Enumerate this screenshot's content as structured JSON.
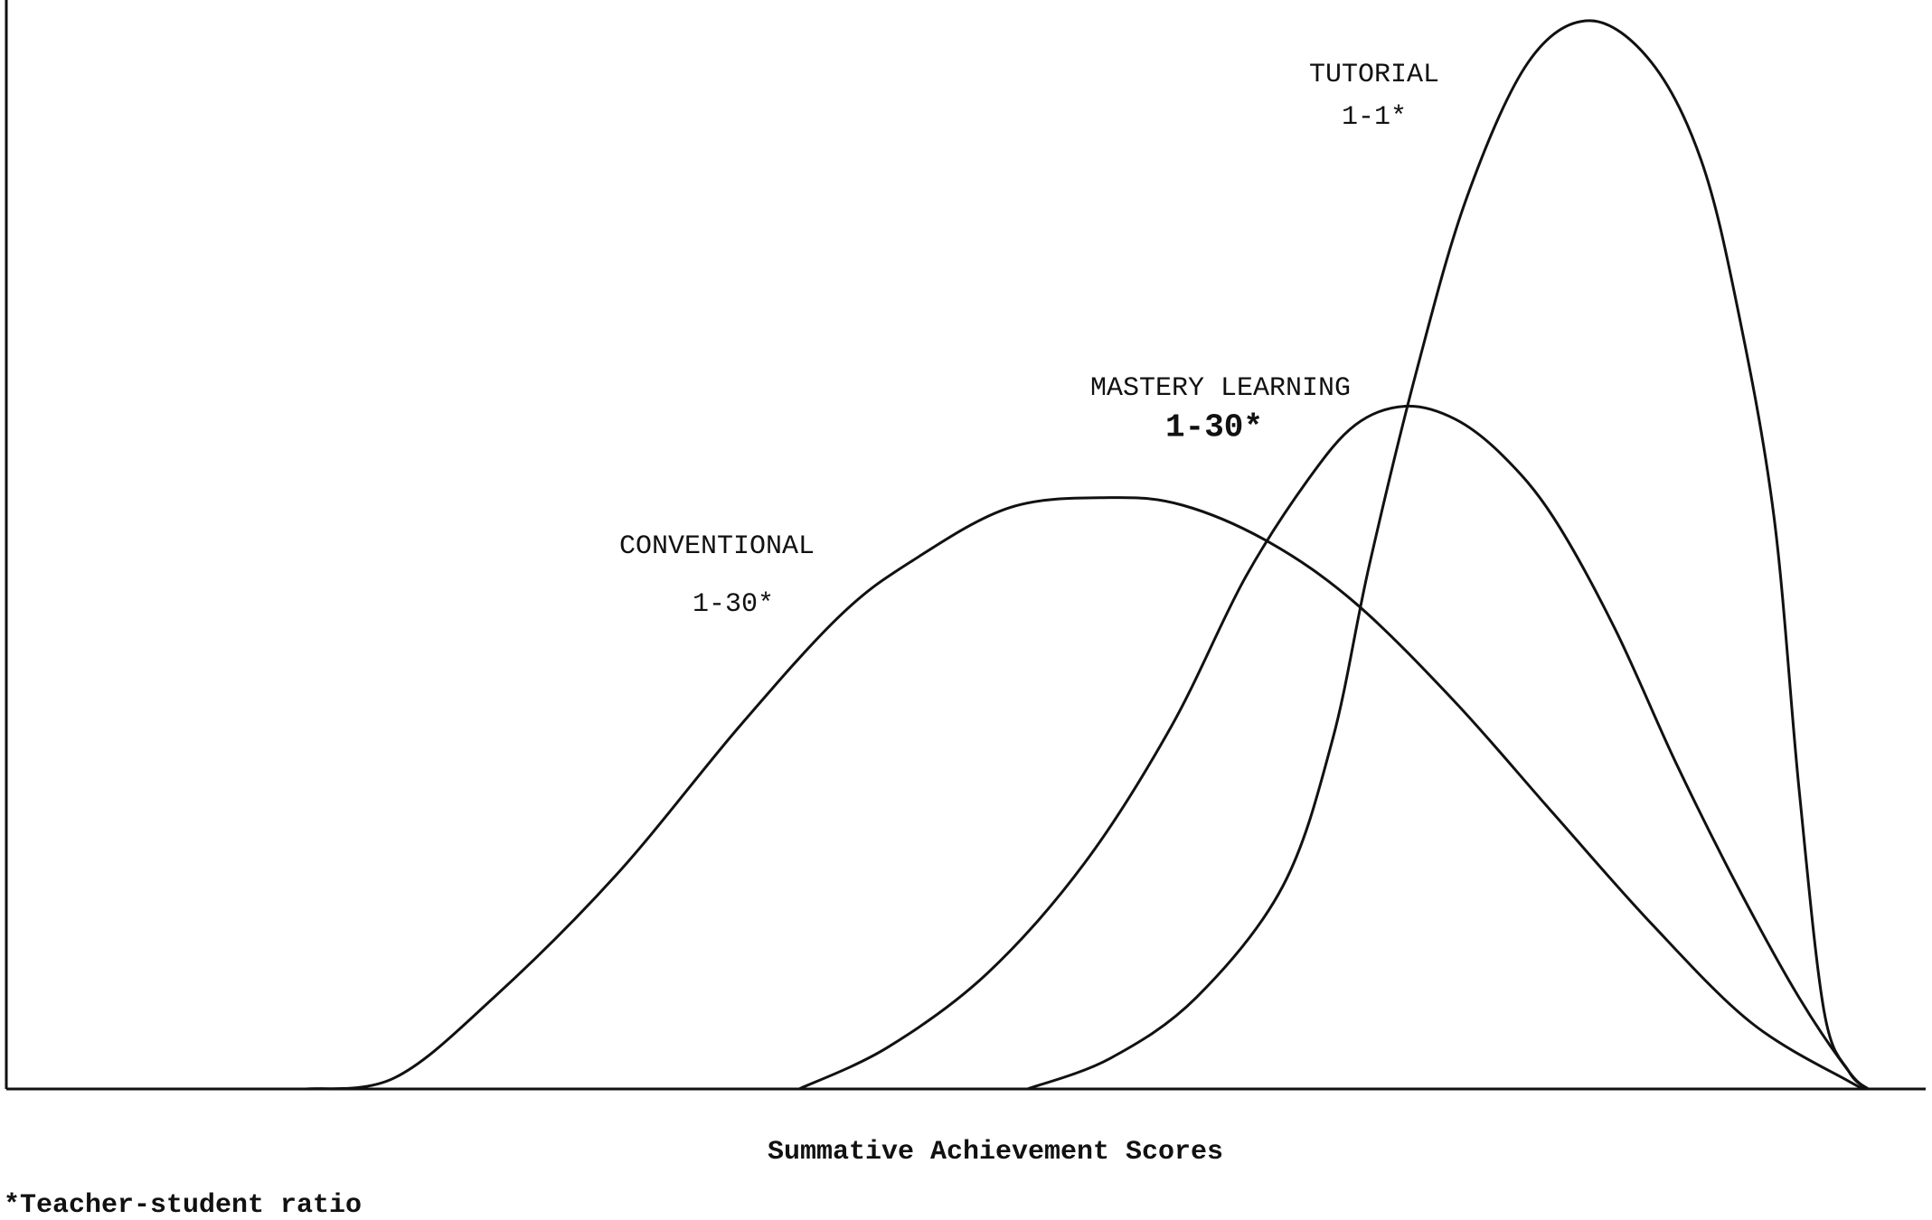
{
  "chart_data": {
    "type": "line",
    "xlabel": "Summative Achievement Scores",
    "footnote": "*Teacher-student ratio",
    "xlim": [
      0,
      100
    ],
    "ylim": [
      0,
      100
    ],
    "series": [
      {
        "name": "CONVENTIONAL",
        "note": "1-30*",
        "color": "#111111",
        "x": [
          15.6,
          20.2,
          25.4,
          31.8,
          38.2,
          43.4,
          47.2,
          52.3,
          57.5,
          61.3,
          65.8,
          70.3,
          75.5,
          80.6,
          85.7,
          90.9,
          96.0,
          97.0
        ],
        "values": [
          0,
          1.0,
          8.4,
          19.7,
          33.3,
          43.4,
          48.5,
          53.4,
          54.3,
          53.6,
          50.2,
          44.6,
          35.5,
          25.3,
          15.2,
          6.1,
          0.7,
          0
        ]
      },
      {
        "name": "MASTERY LEARNING",
        "note": "1-30*",
        "color": "#111111",
        "x": [
          41.3,
          45.9,
          51.1,
          56.2,
          60.7,
          64.5,
          67.8,
          70.3,
          72.9,
          75.5,
          78.0,
          80.6,
          83.8,
          87.0,
          90.2,
          93.4,
          96.0,
          97.0
        ],
        "values": [
          0,
          3.8,
          10.6,
          20.8,
          33.3,
          46.8,
          55.9,
          61.0,
          62.7,
          61.5,
          58.1,
          52.5,
          42.3,
          29.9,
          18.6,
          8.4,
          1.6,
          0
        ]
      },
      {
        "name": "TUTORIAL",
        "note": "1-1*",
        "color": "#111111",
        "x": [
          53.2,
          57.5,
          62.0,
          66.5,
          69.1,
          71.0,
          73.5,
          76.1,
          79.3,
          82.5,
          85.7,
          88.3,
          90.2,
          92.1,
          93.4,
          94.7,
          96.0,
          97.0
        ],
        "values": [
          0,
          2.8,
          8.4,
          18.6,
          32.1,
          48.0,
          66.1,
          81.9,
          94.3,
          98.1,
          94.3,
          85.3,
          71.7,
          52.5,
          27.6,
          7.2,
          1.6,
          0
        ]
      }
    ]
  }
}
